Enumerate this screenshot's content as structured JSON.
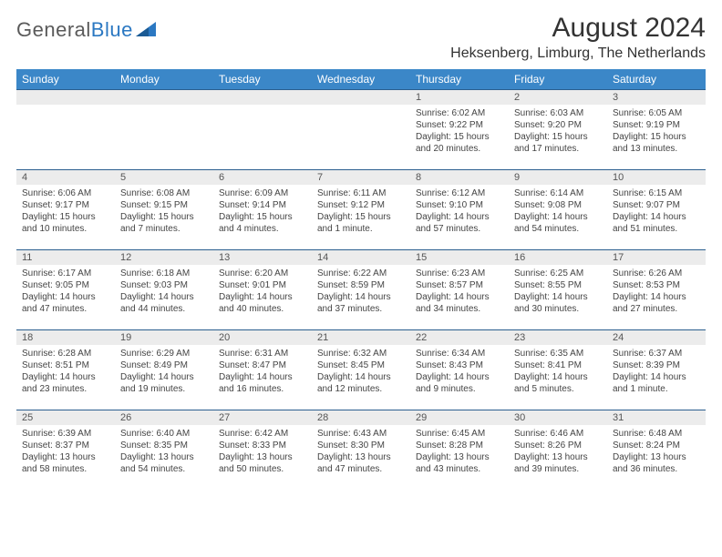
{
  "logo": {
    "text_left": "General",
    "text_right": "Blue"
  },
  "header": {
    "month_title": "August 2024",
    "location": "Heksenberg, Limburg, The Netherlands"
  },
  "colors": {
    "header_bg": "#3b87c8",
    "header_text": "#ffffff",
    "row_divider": "#2b5f8f",
    "daynum_bg": "#ececec",
    "body_text": "#444444",
    "logo_gray": "#5a5a5a",
    "logo_blue": "#2b78c2"
  },
  "weekdays": [
    "Sunday",
    "Monday",
    "Tuesday",
    "Wednesday",
    "Thursday",
    "Friday",
    "Saturday"
  ],
  "weeks": [
    [
      null,
      null,
      null,
      null,
      {
        "d": "1",
        "sr": "6:02 AM",
        "ss": "9:22 PM",
        "dl": "15 hours and 20 minutes."
      },
      {
        "d": "2",
        "sr": "6:03 AM",
        "ss": "9:20 PM",
        "dl": "15 hours and 17 minutes."
      },
      {
        "d": "3",
        "sr": "6:05 AM",
        "ss": "9:19 PM",
        "dl": "15 hours and 13 minutes."
      }
    ],
    [
      {
        "d": "4",
        "sr": "6:06 AM",
        "ss": "9:17 PM",
        "dl": "15 hours and 10 minutes."
      },
      {
        "d": "5",
        "sr": "6:08 AM",
        "ss": "9:15 PM",
        "dl": "15 hours and 7 minutes."
      },
      {
        "d": "6",
        "sr": "6:09 AM",
        "ss": "9:14 PM",
        "dl": "15 hours and 4 minutes."
      },
      {
        "d": "7",
        "sr": "6:11 AM",
        "ss": "9:12 PM",
        "dl": "15 hours and 1 minute."
      },
      {
        "d": "8",
        "sr": "6:12 AM",
        "ss": "9:10 PM",
        "dl": "14 hours and 57 minutes."
      },
      {
        "d": "9",
        "sr": "6:14 AM",
        "ss": "9:08 PM",
        "dl": "14 hours and 54 minutes."
      },
      {
        "d": "10",
        "sr": "6:15 AM",
        "ss": "9:07 PM",
        "dl": "14 hours and 51 minutes."
      }
    ],
    [
      {
        "d": "11",
        "sr": "6:17 AM",
        "ss": "9:05 PM",
        "dl": "14 hours and 47 minutes."
      },
      {
        "d": "12",
        "sr": "6:18 AM",
        "ss": "9:03 PM",
        "dl": "14 hours and 44 minutes."
      },
      {
        "d": "13",
        "sr": "6:20 AM",
        "ss": "9:01 PM",
        "dl": "14 hours and 40 minutes."
      },
      {
        "d": "14",
        "sr": "6:22 AM",
        "ss": "8:59 PM",
        "dl": "14 hours and 37 minutes."
      },
      {
        "d": "15",
        "sr": "6:23 AM",
        "ss": "8:57 PM",
        "dl": "14 hours and 34 minutes."
      },
      {
        "d": "16",
        "sr": "6:25 AM",
        "ss": "8:55 PM",
        "dl": "14 hours and 30 minutes."
      },
      {
        "d": "17",
        "sr": "6:26 AM",
        "ss": "8:53 PM",
        "dl": "14 hours and 27 minutes."
      }
    ],
    [
      {
        "d": "18",
        "sr": "6:28 AM",
        "ss": "8:51 PM",
        "dl": "14 hours and 23 minutes."
      },
      {
        "d": "19",
        "sr": "6:29 AM",
        "ss": "8:49 PM",
        "dl": "14 hours and 19 minutes."
      },
      {
        "d": "20",
        "sr": "6:31 AM",
        "ss": "8:47 PM",
        "dl": "14 hours and 16 minutes."
      },
      {
        "d": "21",
        "sr": "6:32 AM",
        "ss": "8:45 PM",
        "dl": "14 hours and 12 minutes."
      },
      {
        "d": "22",
        "sr": "6:34 AM",
        "ss": "8:43 PM",
        "dl": "14 hours and 9 minutes."
      },
      {
        "d": "23",
        "sr": "6:35 AM",
        "ss": "8:41 PM",
        "dl": "14 hours and 5 minutes."
      },
      {
        "d": "24",
        "sr": "6:37 AM",
        "ss": "8:39 PM",
        "dl": "14 hours and 1 minute."
      }
    ],
    [
      {
        "d": "25",
        "sr": "6:39 AM",
        "ss": "8:37 PM",
        "dl": "13 hours and 58 minutes."
      },
      {
        "d": "26",
        "sr": "6:40 AM",
        "ss": "8:35 PM",
        "dl": "13 hours and 54 minutes."
      },
      {
        "d": "27",
        "sr": "6:42 AM",
        "ss": "8:33 PM",
        "dl": "13 hours and 50 minutes."
      },
      {
        "d": "28",
        "sr": "6:43 AM",
        "ss": "8:30 PM",
        "dl": "13 hours and 47 minutes."
      },
      {
        "d": "29",
        "sr": "6:45 AM",
        "ss": "8:28 PM",
        "dl": "13 hours and 43 minutes."
      },
      {
        "d": "30",
        "sr": "6:46 AM",
        "ss": "8:26 PM",
        "dl": "13 hours and 39 minutes."
      },
      {
        "d": "31",
        "sr": "6:48 AM",
        "ss": "8:24 PM",
        "dl": "13 hours and 36 minutes."
      }
    ]
  ],
  "labels": {
    "sunrise": "Sunrise: ",
    "sunset": "Sunset: ",
    "daylight": "Daylight: "
  }
}
